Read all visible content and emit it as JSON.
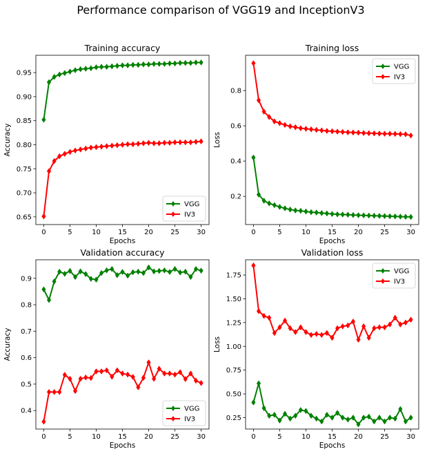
{
  "suptitle": "Performance comparison of VGG19 and InceptionV3",
  "colors": {
    "vgg": "#008000",
    "iv3": "#ff0000"
  },
  "chart_data": [
    {
      "type": "line",
      "title": "Training accuracy",
      "xlabel": "Epochs",
      "ylabel": "Accuracy",
      "xlim": [
        -1.5,
        31.5
      ],
      "ylim": [
        0.634,
        0.986
      ],
      "xticks": [
        0,
        5,
        10,
        15,
        20,
        25,
        30
      ],
      "yticks": [
        0.65,
        0.7,
        0.75,
        0.8,
        0.85,
        0.9,
        0.95
      ],
      "ytick_labels": [
        "0.65",
        "0.70",
        "0.75",
        "0.80",
        "0.85",
        "0.90",
        "0.95"
      ],
      "legend_position": "lower-right",
      "x": [
        0,
        1,
        2,
        3,
        4,
        5,
        6,
        7,
        8,
        9,
        10,
        11,
        12,
        13,
        14,
        15,
        16,
        17,
        18,
        19,
        20,
        21,
        22,
        23,
        24,
        25,
        26,
        27,
        28,
        29,
        30
      ],
      "series": [
        {
          "name": "VGG",
          "color": "#008000",
          "values": [
            0.852,
            0.93,
            0.941,
            0.946,
            0.949,
            0.952,
            0.955,
            0.957,
            0.958,
            0.959,
            0.961,
            0.962,
            0.962,
            0.963,
            0.964,
            0.965,
            0.965,
            0.966,
            0.966,
            0.967,
            0.967,
            0.968,
            0.968,
            0.968,
            0.969,
            0.969,
            0.97,
            0.97,
            0.97,
            0.971,
            0.971
          ]
        },
        {
          "name": "IV3",
          "color": "#ff0000",
          "values": [
            0.651,
            0.745,
            0.766,
            0.776,
            0.781,
            0.785,
            0.788,
            0.79,
            0.792,
            0.794,
            0.795,
            0.796,
            0.797,
            0.798,
            0.799,
            0.8,
            0.801,
            0.801,
            0.802,
            0.803,
            0.804,
            0.803,
            0.803,
            0.804,
            0.804,
            0.805,
            0.805,
            0.805,
            0.805,
            0.806,
            0.807
          ]
        }
      ]
    },
    {
      "type": "line",
      "title": "Training loss",
      "xlabel": "Epochs",
      "ylabel": "Loss",
      "xlim": [
        -1.5,
        31.5
      ],
      "ylim": [
        0.04,
        1.0
      ],
      "xticks": [
        0,
        5,
        10,
        15,
        20,
        25,
        30
      ],
      "yticks": [
        0.2,
        0.4,
        0.6,
        0.8
      ],
      "ytick_labels": [
        "0.2",
        "0.4",
        "0.6",
        "0.8"
      ],
      "legend_position": "upper-right",
      "x": [
        0,
        1,
        2,
        3,
        4,
        5,
        6,
        7,
        8,
        9,
        10,
        11,
        12,
        13,
        14,
        15,
        16,
        17,
        18,
        19,
        20,
        21,
        22,
        23,
        24,
        25,
        26,
        27,
        28,
        29,
        30
      ],
      "series": [
        {
          "name": "VGG",
          "color": "#008000",
          "values": [
            0.42,
            0.21,
            0.175,
            0.16,
            0.15,
            0.14,
            0.132,
            0.125,
            0.12,
            0.118,
            0.114,
            0.11,
            0.108,
            0.105,
            0.103,
            0.1,
            0.098,
            0.097,
            0.096,
            0.094,
            0.093,
            0.092,
            0.091,
            0.09,
            0.089,
            0.088,
            0.087,
            0.086,
            0.085,
            0.084,
            0.083
          ]
        },
        {
          "name": "IV3",
          "color": "#ff0000",
          "values": [
            0.955,
            0.745,
            0.68,
            0.65,
            0.625,
            0.615,
            0.605,
            0.597,
            0.592,
            0.586,
            0.583,
            0.58,
            0.577,
            0.574,
            0.571,
            0.569,
            0.567,
            0.565,
            0.563,
            0.562,
            0.561,
            0.559,
            0.558,
            0.557,
            0.556,
            0.555,
            0.555,
            0.554,
            0.553,
            0.552,
            0.545
          ]
        }
      ]
    },
    {
      "type": "line",
      "title": "Validation accuracy",
      "xlabel": "Epochs",
      "ylabel": "Accuracy",
      "xlim": [
        -1.5,
        31.5
      ],
      "ylim": [
        0.33,
        0.97
      ],
      "xticks": [
        0,
        5,
        10,
        15,
        20,
        25,
        30
      ],
      "yticks": [
        0.4,
        0.5,
        0.6,
        0.7,
        0.8,
        0.9
      ],
      "ytick_labels": [
        "0.4",
        "0.5",
        "0.6",
        "0.7",
        "0.8",
        "0.9"
      ],
      "legend_position": "lower-right",
      "x": [
        0,
        1,
        2,
        3,
        4,
        5,
        6,
        7,
        8,
        9,
        10,
        11,
        12,
        13,
        14,
        15,
        16,
        17,
        18,
        19,
        20,
        21,
        22,
        23,
        24,
        25,
        26,
        27,
        28,
        29,
        30
      ],
      "series": [
        {
          "name": "VGG",
          "color": "#008000",
          "values": [
            0.858,
            0.818,
            0.888,
            0.925,
            0.917,
            0.928,
            0.905,
            0.926,
            0.916,
            0.898,
            0.895,
            0.92,
            0.93,
            0.935,
            0.912,
            0.924,
            0.91,
            0.923,
            0.925,
            0.92,
            0.941,
            0.926,
            0.928,
            0.93,
            0.924,
            0.935,
            0.922,
            0.925,
            0.905,
            0.935,
            0.929
          ]
        },
        {
          "name": "IV3",
          "color": "#ff0000",
          "values": [
            0.358,
            0.47,
            0.47,
            0.47,
            0.535,
            0.52,
            0.474,
            0.52,
            0.525,
            0.523,
            0.548,
            0.548,
            0.552,
            0.528,
            0.552,
            0.54,
            0.536,
            0.527,
            0.488,
            0.524,
            0.582,
            0.52,
            0.558,
            0.54,
            0.54,
            0.536,
            0.545,
            0.519,
            0.54,
            0.513,
            0.504
          ]
        }
      ]
    },
    {
      "type": "line",
      "title": "Validation loss",
      "xlabel": "Epochs",
      "ylabel": "Loss",
      "xlim": [
        -1.5,
        31.5
      ],
      "ylim": [
        0.13,
        1.91
      ],
      "xticks": [
        0,
        5,
        10,
        15,
        20,
        25,
        30
      ],
      "yticks": [
        0.25,
        0.5,
        0.75,
        1.0,
        1.25,
        1.5,
        1.75
      ],
      "ytick_labels": [
        "0.25",
        "0.50",
        "0.75",
        "1.00",
        "1.25",
        "1.50",
        "1.75"
      ],
      "legend_position": "upper-right",
      "x": [
        0,
        1,
        2,
        3,
        4,
        5,
        6,
        7,
        8,
        9,
        10,
        11,
        12,
        13,
        14,
        15,
        16,
        17,
        18,
        19,
        20,
        21,
        22,
        23,
        24,
        25,
        26,
        27,
        28,
        29,
        30
      ],
      "series": [
        {
          "name": "VGG",
          "color": "#008000",
          "values": [
            0.41,
            0.61,
            0.35,
            0.27,
            0.28,
            0.22,
            0.29,
            0.24,
            0.27,
            0.33,
            0.32,
            0.27,
            0.24,
            0.21,
            0.28,
            0.25,
            0.3,
            0.25,
            0.23,
            0.25,
            0.18,
            0.25,
            0.26,
            0.21,
            0.25,
            0.21,
            0.25,
            0.24,
            0.34,
            0.21,
            0.25
          ]
        },
        {
          "name": "IV3",
          "color": "#ff0000",
          "values": [
            1.85,
            1.37,
            1.32,
            1.3,
            1.14,
            1.2,
            1.27,
            1.19,
            1.15,
            1.2,
            1.15,
            1.12,
            1.13,
            1.12,
            1.14,
            1.09,
            1.19,
            1.21,
            1.22,
            1.26,
            1.07,
            1.21,
            1.09,
            1.19,
            1.2,
            1.2,
            1.23,
            1.3,
            1.23,
            1.25,
            1.28
          ]
        }
      ]
    }
  ]
}
